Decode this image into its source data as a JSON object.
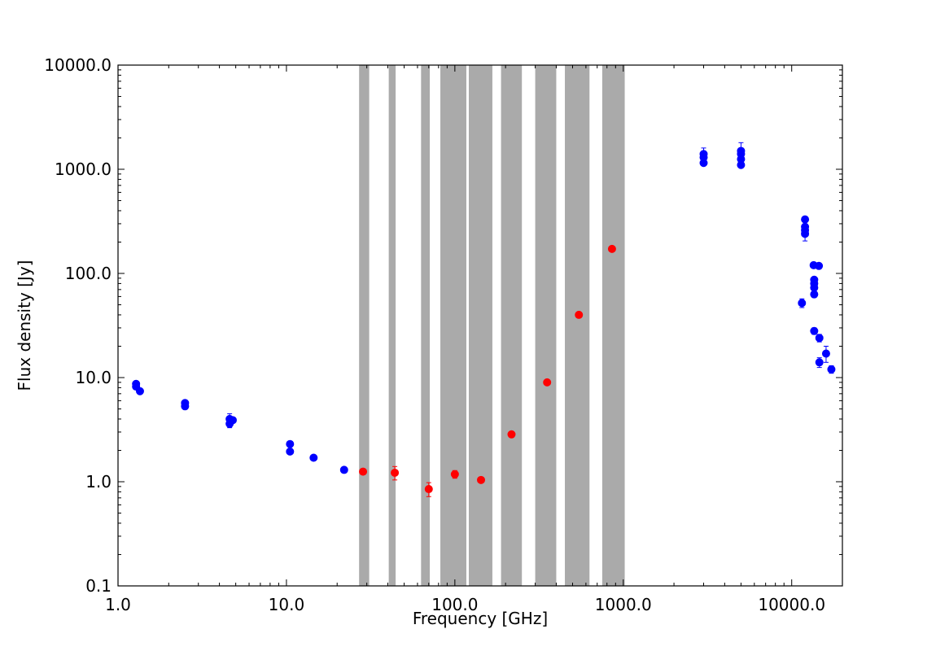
{
  "chart_data": {
    "type": "scatter",
    "title": "",
    "xlabel": "Frequency [GHz]",
    "ylabel": "Flux density [Jy]",
    "x_scale": "log",
    "y_scale": "log",
    "xlim": [
      1.0,
      20000.0
    ],
    "ylim": [
      0.1,
      10000.0
    ],
    "x_ticks": [
      1.0,
      10.0,
      100.0,
      1000.0,
      10000.0
    ],
    "x_tick_labels": [
      "1.0",
      "10.0",
      "100.0",
      "1000.0",
      "10000.0"
    ],
    "y_ticks": [
      0.1,
      1.0,
      10.0,
      100.0,
      1000.0,
      10000.0
    ],
    "y_tick_labels": [
      "0.1",
      "1.0",
      "10.0",
      "100.0",
      "1000.0",
      "10000.0"
    ],
    "grid": false,
    "legend": "none",
    "bands_color": "#aaaaaa",
    "bands": [
      [
        27.0,
        31.0
      ],
      [
        40.5,
        44.5
      ],
      [
        63.0,
        71.0
      ],
      [
        82.0,
        117.0
      ],
      [
        121.0,
        167.0
      ],
      [
        188.0,
        250.0
      ],
      [
        300.0,
        400.0
      ],
      [
        450.0,
        630.0
      ],
      [
        750.0,
        1020.0
      ]
    ],
    "series": [
      {
        "color": "#0000ff",
        "points": [
          {
            "x": 1.28,
            "y": 8.7,
            "err": 0.3
          },
          {
            "x": 1.28,
            "y": 8.2,
            "err": 0.3
          },
          {
            "x": 1.35,
            "y": 7.4,
            "err": 0.2
          },
          {
            "x": 2.5,
            "y": 5.7,
            "err": 0.2
          },
          {
            "x": 2.5,
            "y": 5.3,
            "err": 0.2
          },
          {
            "x": 4.6,
            "y": 4.0,
            "err": 0.5
          },
          {
            "x": 4.6,
            "y": 3.6,
            "err": 0.3
          },
          {
            "x": 4.8,
            "y": 3.9,
            "err": 0.2
          },
          {
            "x": 10.5,
            "y": 2.3,
            "err": 0.1
          },
          {
            "x": 10.5,
            "y": 1.95,
            "err": 0.1
          },
          {
            "x": 14.5,
            "y": 1.7,
            "err": 0.05
          },
          {
            "x": 22.0,
            "y": 1.3,
            "err": 0.08
          },
          {
            "x": 3000.0,
            "y": 1400.0,
            "err": 200.0
          },
          {
            "x": 3000.0,
            "y": 1300.0,
            "err": 100.0
          },
          {
            "x": 3000.0,
            "y": 1150.0,
            "err": 50.0
          },
          {
            "x": 5000.0,
            "y": 1500.0,
            "err": 300.0
          },
          {
            "x": 5000.0,
            "y": 1400.0,
            "err": 100.0
          },
          {
            "x": 5000.0,
            "y": 1250.0,
            "err": 100.0
          },
          {
            "x": 5000.0,
            "y": 1100.0,
            "err": 50.0
          },
          {
            "x": 12000.0,
            "y": 330.0,
            "err": 20.0
          },
          {
            "x": 12000.0,
            "y": 280.0,
            "err": 20.0
          },
          {
            "x": 12000.0,
            "y": 260.0,
            "err": 20.0
          },
          {
            "x": 12000.0,
            "y": 240.0,
            "err": 35.0
          },
          {
            "x": 11500.0,
            "y": 52.0,
            "err": 5.0
          },
          {
            "x": 13500.0,
            "y": 120.0,
            "err": 5.0
          },
          {
            "x": 14500.0,
            "y": 118.0,
            "err": 5.0
          },
          {
            "x": 13600.0,
            "y": 87.0,
            "err": 5.0
          },
          {
            "x": 13600.0,
            "y": 80.0,
            "err": 5.0
          },
          {
            "x": 13600.0,
            "y": 73.0,
            "err": 5.0
          },
          {
            "x": 13600.0,
            "y": 63.0,
            "err": 4.0
          },
          {
            "x": 13600.0,
            "y": 28.0,
            "err": 2.0
          },
          {
            "x": 14600.0,
            "y": 24.0,
            "err": 2.0
          },
          {
            "x": 14600.0,
            "y": 14.0,
            "err": 1.5
          },
          {
            "x": 16000.0,
            "y": 17.0,
            "err": 3.0
          },
          {
            "x": 17200.0,
            "y": 12.0,
            "err": 1.0
          }
        ]
      },
      {
        "color": "#ff0000",
        "points": [
          {
            "x": 28.5,
            "y": 1.25,
            "err": 0.05
          },
          {
            "x": 44.0,
            "y": 1.22,
            "err": 0.18
          },
          {
            "x": 70.0,
            "y": 0.85,
            "err": 0.13
          },
          {
            "x": 100.0,
            "y": 1.18,
            "err": 0.1
          },
          {
            "x": 143.0,
            "y": 1.04,
            "err": 0.05
          },
          {
            "x": 217.0,
            "y": 2.85,
            "err": 0.1
          },
          {
            "x": 353.0,
            "y": 9.0,
            "err": 0.3
          },
          {
            "x": 545.0,
            "y": 40.0,
            "err": 1.5
          },
          {
            "x": 857.0,
            "y": 172.0,
            "err": 6.0
          }
        ]
      }
    ]
  }
}
